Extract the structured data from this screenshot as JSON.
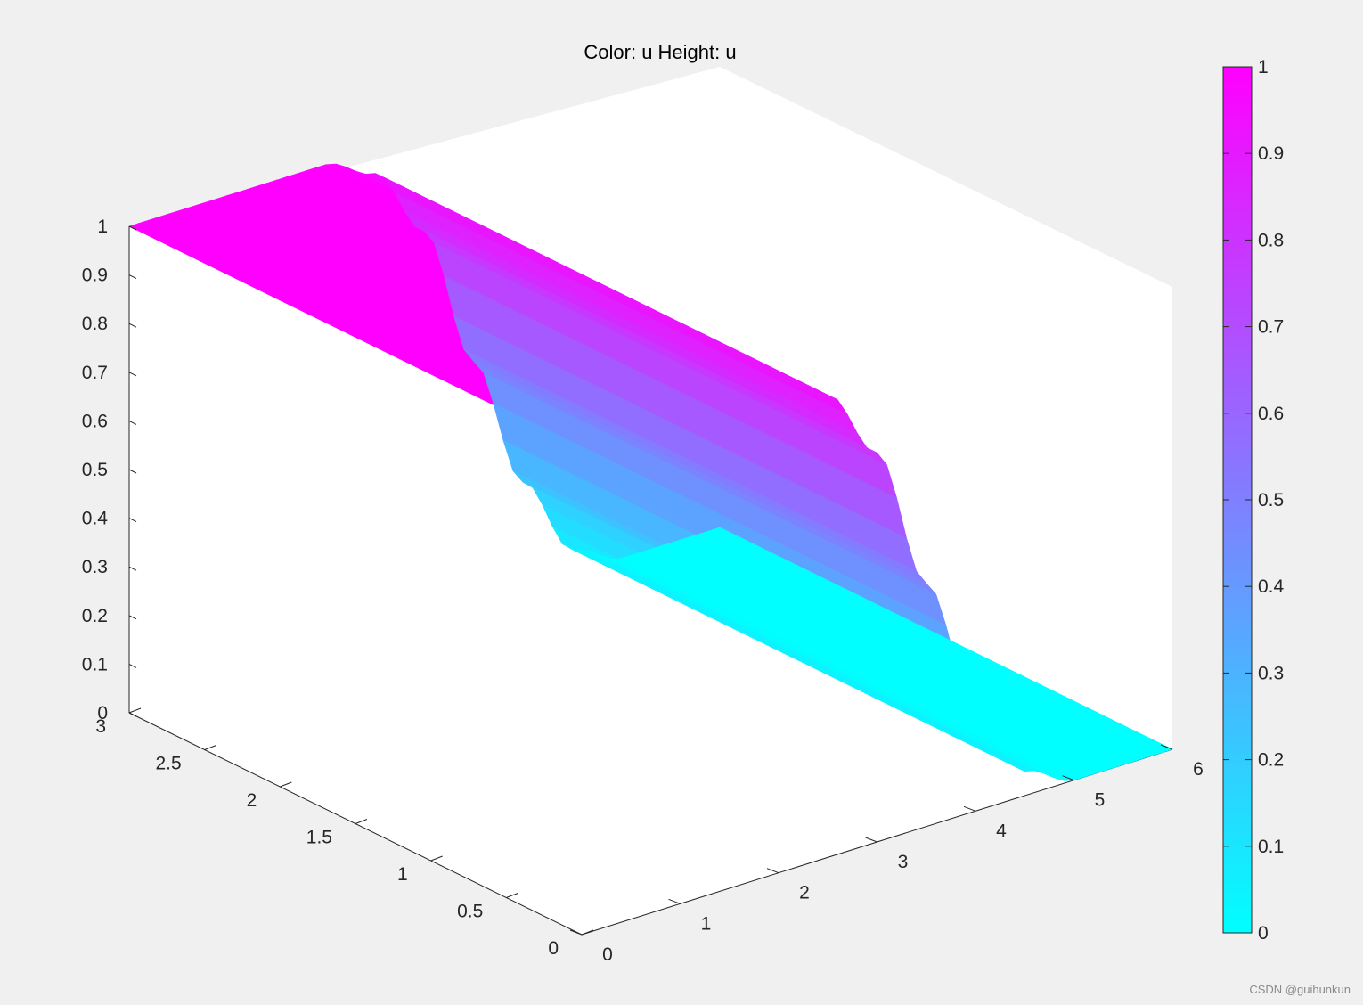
{
  "chart_data": {
    "type": "surface",
    "title": "Color: u  Height: u",
    "x": {
      "range": [
        0,
        6
      ],
      "ticks": [
        0,
        1,
        2,
        3,
        4,
        5,
        6
      ],
      "tick_labels": [
        "0",
        "1",
        "2",
        "3",
        "4",
        "5",
        "6"
      ]
    },
    "y": {
      "range": [
        0,
        3
      ],
      "ticks": [
        0,
        0.5,
        1,
        1.5,
        2,
        2.5,
        3
      ],
      "tick_labels": [
        "0",
        "0.5",
        "1",
        "1.5",
        "2",
        "2.5",
        "3"
      ]
    },
    "z": {
      "range": [
        0,
        1
      ],
      "ticks": [
        0,
        0.1,
        0.2,
        0.3,
        0.4,
        0.5,
        0.6,
        0.7,
        0.8,
        0.9,
        1
      ],
      "tick_labels": [
        "0",
        "0.1",
        "0.2",
        "0.3",
        "0.4",
        "0.5",
        "0.6",
        "0.7",
        "0.8",
        "0.9",
        "1"
      ]
    },
    "colorbar": {
      "range": [
        0,
        1
      ],
      "ticks": [
        0,
        0.1,
        0.2,
        0.3,
        0.4,
        0.5,
        0.6,
        0.7,
        0.8,
        0.9,
        1
      ],
      "tick_labels": [
        "0",
        "0.1",
        "0.2",
        "0.3",
        "0.4",
        "0.5",
        "0.6",
        "0.7",
        "0.8",
        "0.9",
        "1"
      ],
      "colormap": "cool",
      "color_min": "#00ffff",
      "color_max": "#ff00ff"
    },
    "grid": false,
    "surface_profile": {
      "x": [
        0,
        1,
        1.5,
        2,
        2.5,
        3,
        3.5,
        4,
        4.5,
        5,
        6
      ],
      "u": [
        1,
        1,
        1,
        1,
        0.95,
        0.8,
        0.5,
        0.22,
        0.05,
        0,
        0
      ]
    }
  },
  "watermark": "CSDN @guihunkun"
}
